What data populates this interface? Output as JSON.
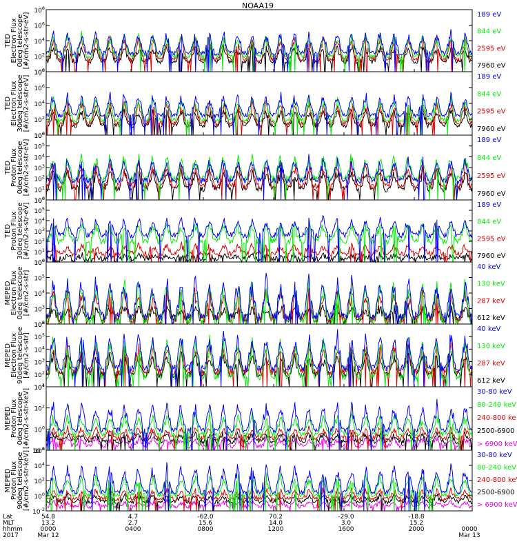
{
  "title": "NOAA19",
  "colors": {
    "black": "#000000",
    "red": "#dd0000",
    "green": "#00ee00",
    "blue": "#0000ff",
    "magenta": "#ee00ee"
  },
  "chart_data": [
    {
      "type": "line",
      "ylabel": [
        "TED",
        "Electron Flux",
        "0deg telescope",
        "[#/cm2-s-str-eV]"
      ],
      "yticks": [
        "10^0",
        "10^2",
        "10^4",
        "10^6",
        "10^8"
      ],
      "log_ylim": [
        0,
        8
      ],
      "series": [
        {
          "name": "7960 eV",
          "color": "black",
          "base": 1.3,
          "peak": 3.6
        },
        {
          "name": "2595 eV",
          "color": "red",
          "base": 1.6,
          "peak": 4.8
        },
        {
          "name": "844 eV",
          "color": "green",
          "base": 2.0,
          "peak": 5.2
        },
        {
          "name": "189 eV",
          "color": "blue",
          "base": 2.4,
          "peak": 5.5
        }
      ]
    },
    {
      "type": "line",
      "ylabel": [
        "TED",
        "Electron Flux",
        "30deg telescope",
        "[#/cm2-s-str-eV]"
      ],
      "yticks": [
        "10^0",
        "10^2",
        "10^4",
        "10^6",
        "10^8"
      ],
      "log_ylim": [
        0,
        8
      ],
      "series": [
        {
          "name": "7960 eV",
          "color": "black",
          "base": 1.2,
          "peak": 3.5
        },
        {
          "name": "2595 eV",
          "color": "red",
          "base": 1.5,
          "peak": 4.5
        },
        {
          "name": "844 eV",
          "color": "green",
          "base": 1.9,
          "peak": 5.0
        },
        {
          "name": "189 eV",
          "color": "blue",
          "base": 2.5,
          "peak": 5.5
        }
      ]
    },
    {
      "type": "line",
      "ylabel": [
        "TED",
        "Proton Flux",
        "0deg telescope",
        "[#/cm2-s-str-eV]"
      ],
      "yticks": [
        "10^0",
        "10^1",
        "10^2",
        "10^3",
        "10^4",
        "10^5",
        "10^6"
      ],
      "log_ylim": [
        0,
        6
      ],
      "series": [
        {
          "name": "7960 eV",
          "color": "black",
          "base": 1.0,
          "peak": 3.0
        },
        {
          "name": "2595 eV",
          "color": "red",
          "base": 1.3,
          "peak": 3.6
        },
        {
          "name": "844 eV",
          "color": "green",
          "base": 2.0,
          "peak": 4.4
        },
        {
          "name": "189 eV",
          "color": "blue",
          "base": 1.8,
          "peak": 4.1
        }
      ]
    },
    {
      "type": "line",
      "ylabel": [
        "TED",
        "Proton Flux",
        "30deg telescope",
        "[#/cm2-s-str-eV]"
      ],
      "yticks": [
        "10^0",
        "10^1",
        "10^2",
        "10^3",
        "10^4",
        "10^5",
        "10^6"
      ],
      "log_ylim": [
        0,
        6
      ],
      "series": [
        {
          "name": "7960 eV",
          "color": "black",
          "base": 0.3,
          "peak": 0.8
        },
        {
          "name": "2595 eV",
          "color": "red",
          "base": 0.8,
          "peak": 1.8
        },
        {
          "name": "844 eV",
          "color": "green",
          "base": 2.0,
          "peak": 4.0
        },
        {
          "name": "189 eV",
          "color": "blue",
          "base": 2.6,
          "peak": 4.4
        }
      ]
    },
    {
      "type": "line",
      "ylabel": [
        "MEPED",
        "Electron Flux",
        "0deg telescope",
        "[#/cm2-s-str]"
      ],
      "yticks": [
        "10^2",
        "10^3",
        "10^4",
        "10^5",
        "10^6"
      ],
      "log_ylim": [
        2,
        6
      ],
      "series": [
        {
          "name": "612 keV",
          "color": "black",
          "base": 2.4,
          "peak": 3.2
        },
        {
          "name": "287 keV",
          "color": "red",
          "base": 2.3,
          "peak": 4.5
        },
        {
          "name": "130 keV",
          "color": "green",
          "base": 2.2,
          "peak": 5.0
        },
        {
          "name": "40 keV",
          "color": "blue",
          "base": 2.5,
          "peak": 5.3
        }
      ]
    },
    {
      "type": "line",
      "ylabel": [
        "MEPED",
        "Electron Flux",
        "90deg telescope",
        "[#/cm2-s-str]"
      ],
      "yticks": [
        "10^1",
        "10^2",
        "10^3",
        "10^4",
        "10^5",
        "10^6"
      ],
      "log_ylim": [
        1,
        6
      ],
      "series": [
        {
          "name": "612 keV",
          "color": "black",
          "base": 2.0,
          "peak": 3.8
        },
        {
          "name": "287 keV",
          "color": "red",
          "base": 2.2,
          "peak": 4.6
        },
        {
          "name": "130 keV",
          "color": "green",
          "base": 1.8,
          "peak": 5.2
        },
        {
          "name": "40 keV",
          "color": "blue",
          "base": 2.5,
          "peak": 5.6
        }
      ]
    },
    {
      "type": "line",
      "ylabel": [
        "MEPED",
        "Proton Flux",
        "0deg telescope",
        "[#/cm2-s-str-keV]"
      ],
      "yticks": [
        "10^-2",
        "10^0",
        "10^2",
        "10^4"
      ],
      "log_ylim": [
        -2,
        5
      ],
      "series": [
        {
          "name": "> 6900 keV",
          "color": "magenta",
          "base": -1.5,
          "peak": -0.5
        },
        {
          "name": "2500-6900",
          "color": "black",
          "base": -1.0,
          "peak": 0.0
        },
        {
          "name": "240-800 ke",
          "color": "red",
          "base": -0.6,
          "peak": 0.6
        },
        {
          "name": "80-240 keV",
          "color": "green",
          "base": -0.2,
          "peak": 2.2
        },
        {
          "name": "30-80 keV",
          "color": "blue",
          "base": 0.2,
          "peak": 3.6
        }
      ]
    },
    {
      "type": "line",
      "ylabel": [
        "MEPED",
        "Proton Flux",
        "90deg telescope",
        "[#/cm2-s-str-keV]"
      ],
      "yticks": [
        "10^-2",
        "10^0",
        "10^2",
        "10^4",
        "10^6"
      ],
      "log_ylim": [
        -2,
        6
      ],
      "series": [
        {
          "name": "> 6900 keV",
          "color": "magenta",
          "base": -1.4,
          "peak": -0.6
        },
        {
          "name": "2500-6900",
          "color": "black",
          "base": -0.8,
          "peak": 0.2
        },
        {
          "name": "240-800 keV",
          "color": "red",
          "base": -0.4,
          "peak": 1.0
        },
        {
          "name": "80-240 keV",
          "color": "green",
          "base": 0.1,
          "peak": 3.0
        },
        {
          "name": "30-80 keV",
          "color": "blue",
          "base": 0.5,
          "peak": 4.4
        }
      ]
    }
  ],
  "xaxis": {
    "row_labels": [
      "Lat",
      "MLT",
      "hhmm",
      "2017"
    ],
    "ticks": [
      {
        "lat": "54.8",
        "mlt": "13.2",
        "hhmm": "0000",
        "date": "Mar 12"
      },
      {
        "lat": "4.7",
        "mlt": "2.7",
        "hhmm": "0400",
        "date": ""
      },
      {
        "lat": "-62.0",
        "mlt": "15.6",
        "hhmm": "0800",
        "date": ""
      },
      {
        "lat": "70.2",
        "mlt": "14.0",
        "hhmm": "1200",
        "date": ""
      },
      {
        "lat": "-29.0",
        "mlt": "3.0",
        "hhmm": "1600",
        "date": ""
      },
      {
        "lat": "-18.8",
        "mlt": "15.2",
        "hhmm": "2000",
        "date": ""
      },
      {
        "lat": "",
        "mlt": "",
        "hhmm": "0000",
        "date": "Mar 13"
      }
    ]
  }
}
